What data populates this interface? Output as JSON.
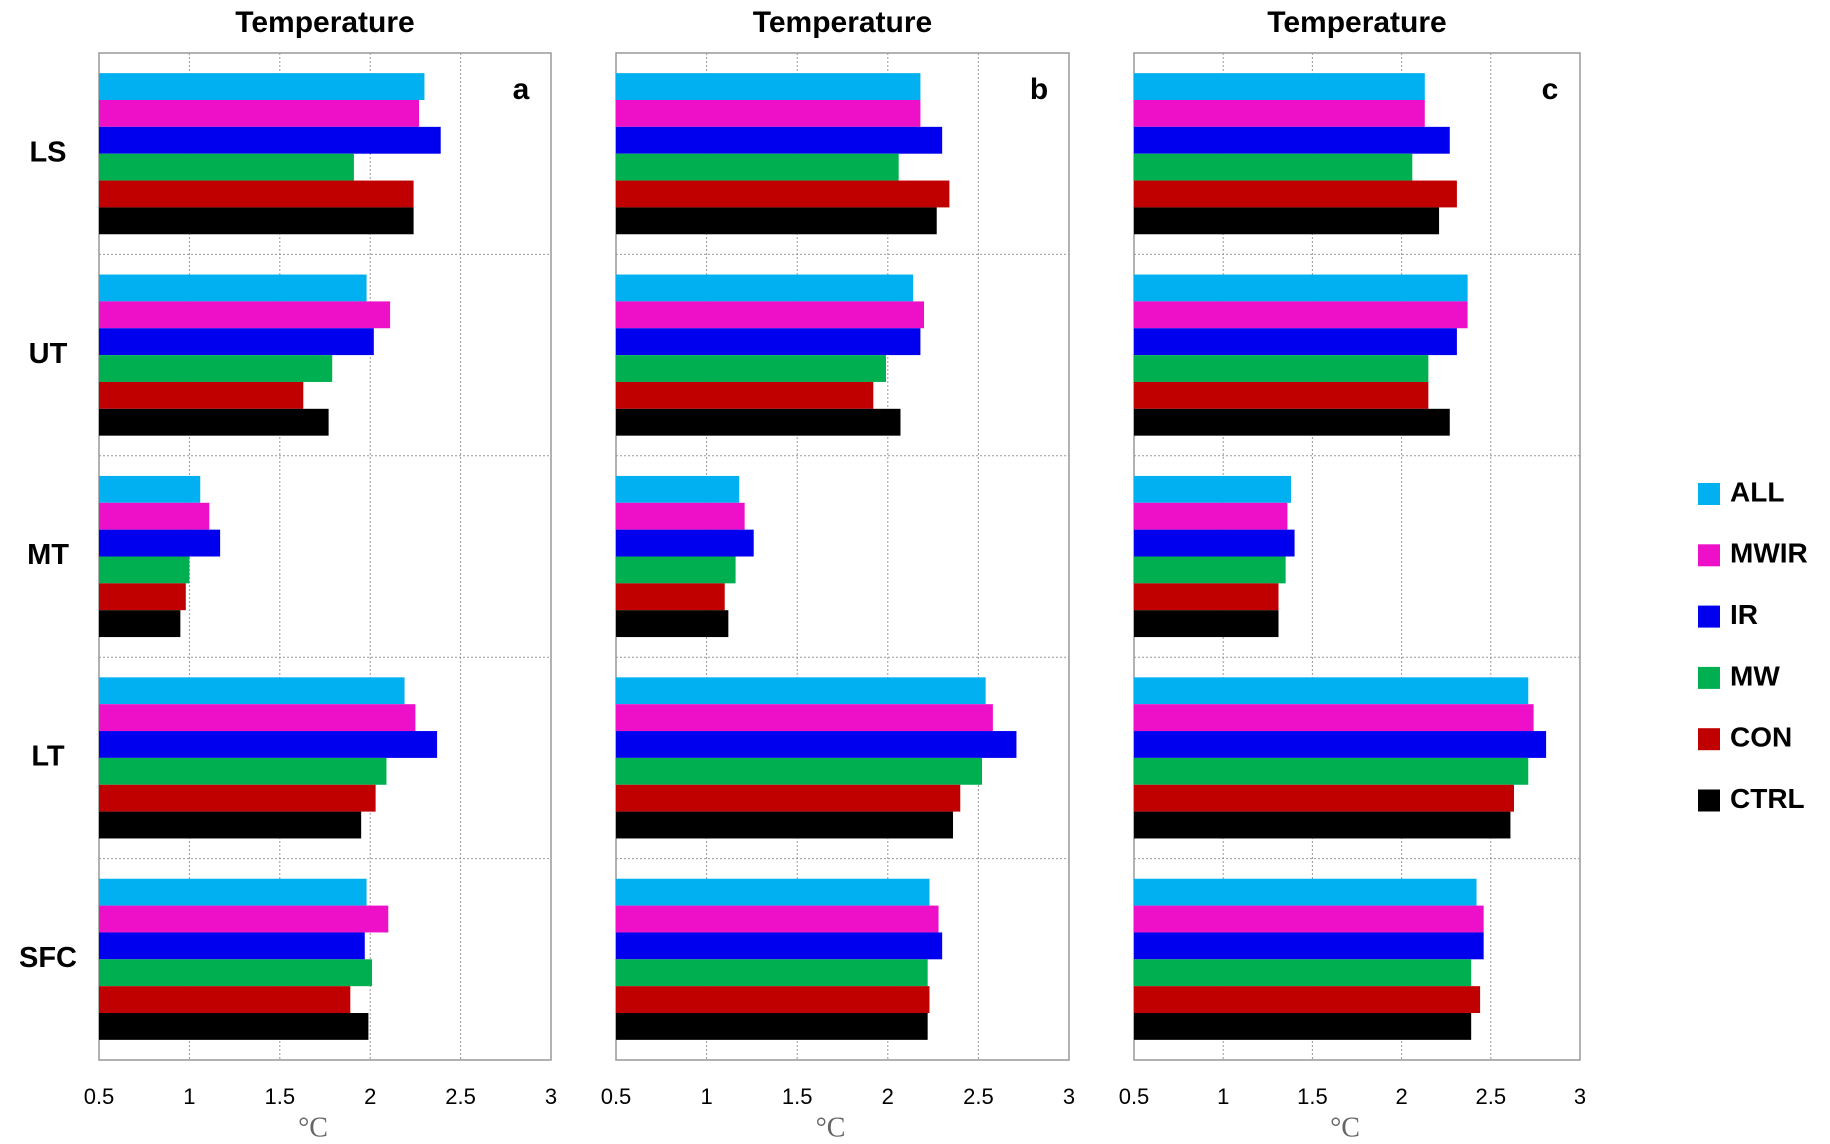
{
  "chart_data": [
    {
      "type": "bar",
      "orientation": "horizontal",
      "title": "Temperature",
      "panel_label": "a",
      "xlabel": "°C",
      "categories": [
        "LS",
        "UT",
        "MT",
        "LT",
        "SFC"
      ],
      "series": [
        {
          "name": "ALL",
          "color": "#00b0f0",
          "values": [
            2.3,
            1.98,
            1.06,
            2.19,
            1.98
          ]
        },
        {
          "name": "MWIR",
          "color": "#ee10c8",
          "values": [
            2.27,
            2.11,
            1.11,
            2.25,
            2.1
          ]
        },
        {
          "name": "IR",
          "color": "#0000ee",
          "values": [
            2.39,
            2.02,
            1.17,
            2.37,
            1.97
          ]
        },
        {
          "name": "MW",
          "color": "#00b050",
          "values": [
            1.91,
            1.79,
            1.0,
            2.09,
            2.01
          ]
        },
        {
          "name": "CON",
          "color": "#c00000",
          "values": [
            2.24,
            1.63,
            0.98,
            2.03,
            1.89
          ]
        },
        {
          "name": "CTRL",
          "color": "#000000",
          "values": [
            2.24,
            1.77,
            0.95,
            1.95,
            1.99
          ]
        }
      ],
      "xlim": [
        0.5,
        3
      ],
      "xticks": [
        0.5,
        1,
        1.5,
        2,
        2.5,
        3
      ],
      "grid": true
    },
    {
      "type": "bar",
      "orientation": "horizontal",
      "title": "Temperature",
      "panel_label": "b",
      "xlabel": "°C",
      "categories": [
        "LS",
        "UT",
        "MT",
        "LT",
        "SFC"
      ],
      "series": [
        {
          "name": "ALL",
          "color": "#00b0f0",
          "values": [
            2.18,
            2.14,
            1.18,
            2.54,
            2.23
          ]
        },
        {
          "name": "MWIR",
          "color": "#ee10c8",
          "values": [
            2.18,
            2.2,
            1.21,
            2.58,
            2.28
          ]
        },
        {
          "name": "IR",
          "color": "#0000ee",
          "values": [
            2.3,
            2.18,
            1.26,
            2.71,
            2.3
          ]
        },
        {
          "name": "MW",
          "color": "#00b050",
          "values": [
            2.06,
            1.99,
            1.16,
            2.52,
            2.22
          ]
        },
        {
          "name": "CON",
          "color": "#c00000",
          "values": [
            2.34,
            1.92,
            1.1,
            2.4,
            2.23
          ]
        },
        {
          "name": "CTRL",
          "color": "#000000",
          "values": [
            2.27,
            2.07,
            1.12,
            2.36,
            2.22
          ]
        }
      ],
      "xlim": [
        0.5,
        3
      ],
      "xticks": [
        0.5,
        1,
        1.5,
        2,
        2.5,
        3
      ],
      "grid": true
    },
    {
      "type": "bar",
      "orientation": "horizontal",
      "title": "Temperature",
      "panel_label": "c",
      "xlabel": "°C",
      "categories": [
        "LS",
        "UT",
        "MT",
        "LT",
        "SFC"
      ],
      "series": [
        {
          "name": "ALL",
          "color": "#00b0f0",
          "values": [
            2.13,
            2.37,
            1.38,
            2.71,
            2.42
          ]
        },
        {
          "name": "MWIR",
          "color": "#ee10c8",
          "values": [
            2.13,
            2.37,
            1.36,
            2.74,
            2.46
          ]
        },
        {
          "name": "IR",
          "color": "#0000ee",
          "values": [
            2.27,
            2.31,
            1.4,
            2.81,
            2.46
          ]
        },
        {
          "name": "MW",
          "color": "#00b050",
          "values": [
            2.06,
            2.15,
            1.35,
            2.71,
            2.39
          ]
        },
        {
          "name": "CON",
          "color": "#c00000",
          "values": [
            2.31,
            2.15,
            1.31,
            2.63,
            2.44
          ]
        },
        {
          "name": "CTRL",
          "color": "#000000",
          "values": [
            2.21,
            2.27,
            1.31,
            2.61,
            2.39
          ]
        }
      ],
      "xlim": [
        0.5,
        3
      ],
      "xticks": [
        0.5,
        1,
        1.5,
        2,
        2.5,
        3
      ],
      "grid": true
    }
  ]
}
